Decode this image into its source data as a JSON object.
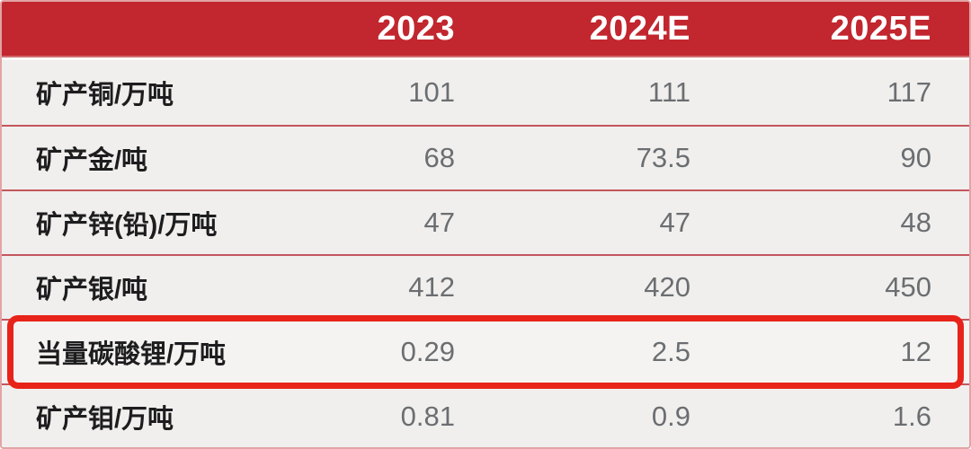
{
  "table": {
    "header": {
      "label_col": "",
      "cols": [
        "2023",
        "2024E",
        "2025E"
      ]
    },
    "rows": [
      {
        "label": "矿产铜/万吨",
        "values": [
          "101",
          "111",
          "117"
        ],
        "highlighted": false
      },
      {
        "label": "矿产金/吨",
        "values": [
          "68",
          "73.5",
          "90"
        ],
        "highlighted": false
      },
      {
        "label": "矿产锌(铅)/万吨",
        "values": [
          "47",
          "47",
          "48"
        ],
        "highlighted": false
      },
      {
        "label": "矿产银/吨",
        "values": [
          "412",
          "420",
          "450"
        ],
        "highlighted": false
      },
      {
        "label": "当量碳酸锂/万吨",
        "values": [
          "0.29",
          "2.5",
          "12"
        ],
        "highlighted": true
      },
      {
        "label": "矿产钼/万吨",
        "values": [
          "0.81",
          "0.9",
          "1.6"
        ],
        "highlighted": false
      }
    ]
  },
  "colors": {
    "header_bg": "#c2262e",
    "header_text": "#ffffff",
    "row_bg": "#f0efed",
    "separator": "#c5565e",
    "outer_border": "#e2a3a5",
    "highlight_border": "#e8231a",
    "label_text": "#1d1d1f",
    "value_text": "#6b6e71"
  },
  "chart_data": {
    "type": "table",
    "columns": [
      "",
      "2023",
      "2024E",
      "2025E"
    ],
    "rows": [
      [
        "矿产铜/万吨",
        101,
        111,
        117
      ],
      [
        "矿产金/吨",
        68,
        73.5,
        90
      ],
      [
        "矿产锌(铅)/万吨",
        47,
        47,
        48
      ],
      [
        "矿产银/吨",
        412,
        420,
        450
      ],
      [
        "当量碳酸锂/万吨",
        0.29,
        2.5,
        12
      ],
      [
        "矿产钼/万吨",
        0.81,
        0.9,
        1.6
      ]
    ],
    "highlighted_row": "当量碳酸锂/万吨",
    "annotation": "当量碳酸锂/万吨 row emphasized with thick red rounded rectangle",
    "legend_position": "none",
    "grid": "horizontal separators only"
  }
}
